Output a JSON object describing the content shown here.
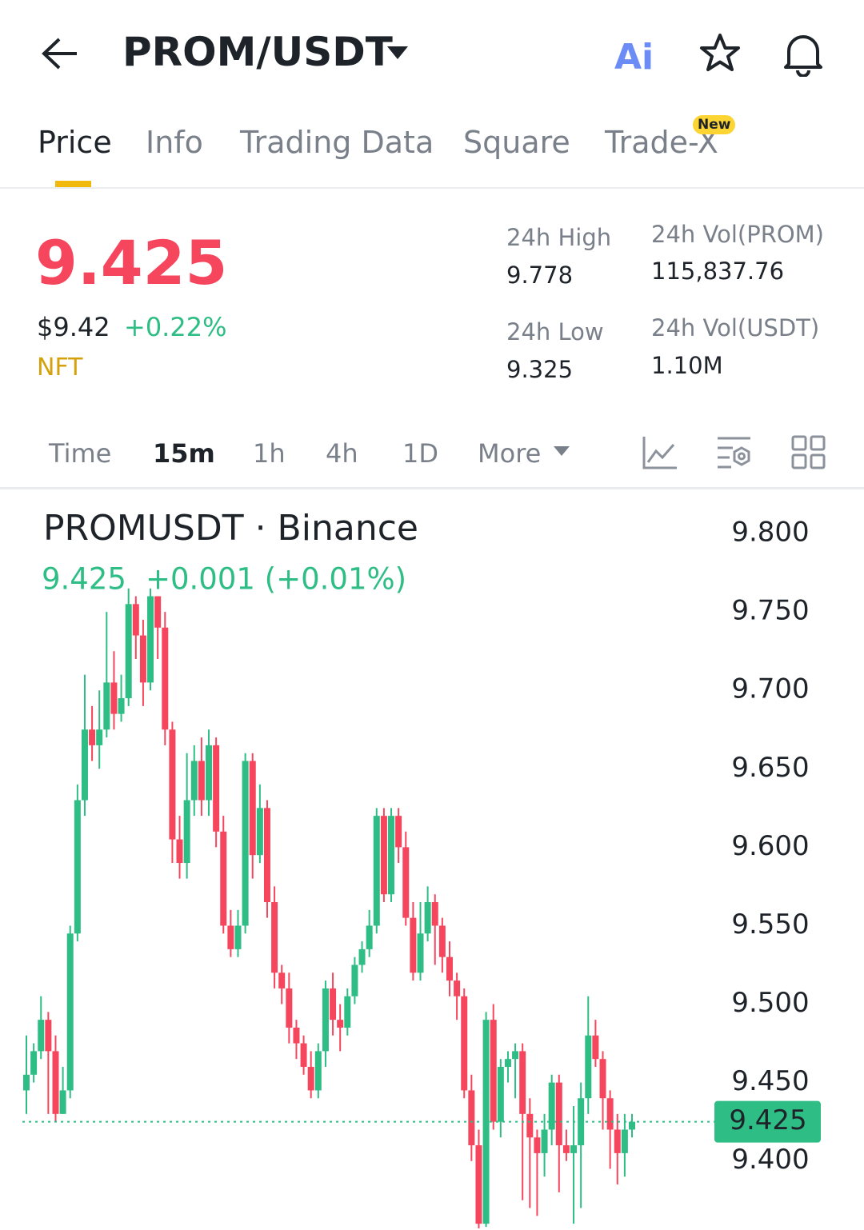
{
  "header": {
    "pair": "PROM/USDT"
  },
  "tabs": [
    "Price",
    "Info",
    "Trading Data",
    "Square",
    "Trade-X"
  ],
  "badge": "New",
  "price": {
    "last": "9.425",
    "usd": "$9.42",
    "change": "+0.22%",
    "tag": "NFT"
  },
  "stats": [
    {
      "label": "24h High",
      "value": "9.778"
    },
    {
      "label": "24h Vol(PROM)",
      "value": "115,837.76"
    },
    {
      "label": "24h Low",
      "value": "9.325"
    },
    {
      "label": "24h Vol(USDT)",
      "value": "1.10M"
    }
  ],
  "timeframes": [
    "Time",
    "15m",
    "1h",
    "4h",
    "1D",
    "More"
  ],
  "chart_data": {
    "type": "candlestick",
    "title": "PROMUSDT · Binance",
    "last_label": "9.425",
    "change_label": "+0.001 (+0.01%)",
    "up_color": "#2ebd85",
    "down_color": "#f6465d",
    "open": [
      9.445,
      9.455,
      9.47,
      9.49,
      9.47,
      9.43,
      9.445,
      9.545,
      9.63,
      9.675,
      9.665,
      9.675,
      9.705,
      9.685,
      9.695,
      9.755,
      9.735,
      9.705,
      9.76,
      9.74,
      9.675,
      9.605,
      9.59,
      9.63,
      9.655,
      9.63,
      9.665,
      9.61,
      9.55,
      9.535,
      9.55,
      9.655,
      9.595,
      9.625,
      9.565,
      9.52,
      9.51,
      9.485,
      9.475,
      9.46,
      9.445,
      9.47,
      9.51,
      9.49,
      9.485,
      9.505,
      9.525,
      9.535,
      9.55,
      9.62,
      9.57,
      9.62,
      9.6,
      9.555,
      9.52,
      9.545,
      9.565,
      9.55,
      9.53,
      9.515,
      9.505,
      9.445,
      9.41,
      9.36,
      9.49,
      9.425,
      9.46,
      9.465,
      9.47,
      9.43,
      9.415,
      9.405,
      9.42,
      9.45,
      9.41,
      9.405,
      9.41,
      9.44,
      9.48,
      9.465,
      9.44,
      9.42,
      9.405,
      9.42
    ],
    "high": [
      9.48,
      9.475,
      9.505,
      9.495,
      9.48,
      9.46,
      9.55,
      9.64,
      9.71,
      9.69,
      9.7,
      9.75,
      9.725,
      9.71,
      9.765,
      9.76,
      9.745,
      9.765,
      9.76,
      9.75,
      9.68,
      9.62,
      9.66,
      9.665,
      9.67,
      9.675,
      9.67,
      9.62,
      9.56,
      9.56,
      9.66,
      9.66,
      9.64,
      9.63,
      9.575,
      9.525,
      9.52,
      9.49,
      9.48,
      9.47,
      9.475,
      9.515,
      9.52,
      9.5,
      9.51,
      9.53,
      9.54,
      9.56,
      9.625,
      9.625,
      9.625,
      9.625,
      9.61,
      9.565,
      9.565,
      9.575,
      9.57,
      9.555,
      9.54,
      9.52,
      9.51,
      9.455,
      9.42,
      9.495,
      9.5,
      9.465,
      9.47,
      9.475,
      9.475,
      9.44,
      9.42,
      9.43,
      9.455,
      9.455,
      9.42,
      9.435,
      9.45,
      9.505,
      9.49,
      9.47,
      9.445,
      9.43,
      9.43,
      9.43
    ],
    "low": [
      9.43,
      9.45,
      9.465,
      9.43,
      9.425,
      9.43,
      9.44,
      9.54,
      9.62,
      9.655,
      9.65,
      9.67,
      9.675,
      9.68,
      9.69,
      9.72,
      9.69,
      9.7,
      9.72,
      9.665,
      9.59,
      9.58,
      9.58,
      9.62,
      9.62,
      9.62,
      9.6,
      9.545,
      9.53,
      9.53,
      9.545,
      9.58,
      9.59,
      9.555,
      9.51,
      9.5,
      9.475,
      9.465,
      9.455,
      9.44,
      9.44,
      9.46,
      9.48,
      9.47,
      9.48,
      9.5,
      9.52,
      9.53,
      9.545,
      9.565,
      9.565,
      9.59,
      9.55,
      9.515,
      9.515,
      9.54,
      9.525,
      9.52,
      9.505,
      9.49,
      9.44,
      9.4,
      9.357,
      9.358,
      9.42,
      9.415,
      9.45,
      9.44,
      9.375,
      9.37,
      9.365,
      9.39,
      9.41,
      9.38,
      9.4,
      9.36,
      9.37,
      9.43,
      9.46,
      9.42,
      9.395,
      9.385,
      9.39,
      9.415
    ],
    "close": [
      9.455,
      9.47,
      9.49,
      9.47,
      9.43,
      9.445,
      9.545,
      9.63,
      9.675,
      9.665,
      9.675,
      9.705,
      9.685,
      9.695,
      9.755,
      9.735,
      9.705,
      9.76,
      9.74,
      9.675,
      9.605,
      9.59,
      9.63,
      9.655,
      9.63,
      9.665,
      9.61,
      9.55,
      9.535,
      9.55,
      9.655,
      9.595,
      9.625,
      9.565,
      9.52,
      9.51,
      9.485,
      9.475,
      9.46,
      9.445,
      9.47,
      9.51,
      9.49,
      9.485,
      9.505,
      9.525,
      9.535,
      9.55,
      9.62,
      9.57,
      9.62,
      9.6,
      9.555,
      9.52,
      9.545,
      9.565,
      9.55,
      9.53,
      9.515,
      9.505,
      9.445,
      9.41,
      9.36,
      9.49,
      9.425,
      9.46,
      9.465,
      9.47,
      9.43,
      9.415,
      9.405,
      9.42,
      9.45,
      9.41,
      9.405,
      9.41,
      9.44,
      9.48,
      9.465,
      9.44,
      9.42,
      9.405,
      9.42,
      9.425
    ],
    "last_price": 9.425,
    "ylim": [
      9.356,
      9.824
    ],
    "yticks": [
      {
        "value": 9.8,
        "label": "9.800"
      },
      {
        "value": 9.75,
        "label": "9.750"
      },
      {
        "value": 9.7,
        "label": "9.700"
      },
      {
        "value": 9.65,
        "label": "9.650"
      },
      {
        "value": 9.6,
        "label": "9.600"
      },
      {
        "value": 9.55,
        "label": "9.550"
      },
      {
        "value": 9.5,
        "label": "9.500"
      },
      {
        "value": 9.45,
        "label": "9.450"
      },
      {
        "value": 9.4,
        "label": "9.400"
      }
    ]
  }
}
